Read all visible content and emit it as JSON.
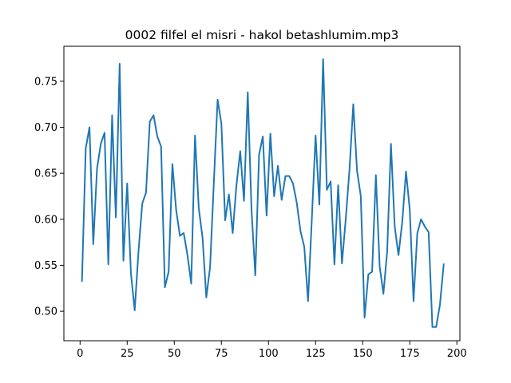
{
  "chart_data": {
    "type": "line",
    "title": "0002 filfel el misri - hakol betashlumim.mp3",
    "xlabel": "",
    "ylabel": "",
    "xlim": [
      -8.6,
      201.6
    ],
    "ylim": [
      0.468,
      0.788
    ],
    "grid": false,
    "x_ticks": [
      0,
      25,
      50,
      75,
      100,
      125,
      150,
      175,
      200
    ],
    "x_tick_labels": [
      "0",
      "25",
      "50",
      "75",
      "100",
      "125",
      "150",
      "175",
      "200"
    ],
    "y_ticks": [
      0.5,
      0.55,
      0.6,
      0.65,
      0.7,
      0.75
    ],
    "y_tick_labels": [
      "0.50",
      "0.55",
      "0.60",
      "0.65",
      "0.70",
      "0.75"
    ],
    "series_color": "#1f77b4",
    "series": [
      {
        "x": [
          1,
          3,
          5,
          7,
          9,
          11,
          13,
          15,
          17,
          19,
          21,
          23,
          25,
          27,
          29,
          31,
          33,
          35,
          37,
          39,
          41,
          43,
          45,
          47,
          49,
          51,
          53,
          55,
          57,
          59,
          61,
          63,
          65,
          67,
          69,
          71,
          73,
          75,
          77,
          79,
          81,
          83,
          85,
          87,
          89,
          91,
          93,
          95,
          97,
          99,
          101,
          103,
          105,
          107,
          109,
          111,
          113,
          115,
          117,
          119,
          121,
          123,
          125,
          127,
          129,
          131,
          133,
          135,
          137,
          139,
          141,
          143,
          145,
          147,
          149,
          151,
          153,
          155,
          157,
          159,
          161,
          163,
          165,
          167,
          169,
          171,
          173,
          175,
          177,
          179,
          181,
          183,
          185,
          187,
          189,
          191,
          193
        ],
        "y": [
          0.533,
          0.677,
          0.7,
          0.573,
          0.655,
          0.682,
          0.694,
          0.551,
          0.713,
          0.602,
          0.769,
          0.555,
          0.639,
          0.541,
          0.501,
          0.565,
          0.617,
          0.629,
          0.706,
          0.713,
          0.69,
          0.679,
          0.526,
          0.543,
          0.66,
          0.61,
          0.582,
          0.585,
          0.561,
          0.53,
          0.691,
          0.612,
          0.58,
          0.515,
          0.548,
          0.64,
          0.73,
          0.704,
          0.599,
          0.627,
          0.585,
          0.637,
          0.674,
          0.62,
          0.738,
          0.61,
          0.539,
          0.67,
          0.69,
          0.604,
          0.693,
          0.625,
          0.658,
          0.621,
          0.647,
          0.647,
          0.639,
          0.618,
          0.587,
          0.57,
          0.511,
          0.6,
          0.691,
          0.616,
          0.774,
          0.632,
          0.641,
          0.551,
          0.637,
          0.552,
          0.6,
          0.654,
          0.725,
          0.653,
          0.625,
          0.493,
          0.54,
          0.543,
          0.648,
          0.549,
          0.519,
          0.565,
          0.682,
          0.592,
          0.561,
          0.597,
          0.652,
          0.61,
          0.511,
          0.585,
          0.6,
          0.592,
          0.586,
          0.483,
          0.483,
          0.507,
          0.551
        ]
      }
    ]
  }
}
